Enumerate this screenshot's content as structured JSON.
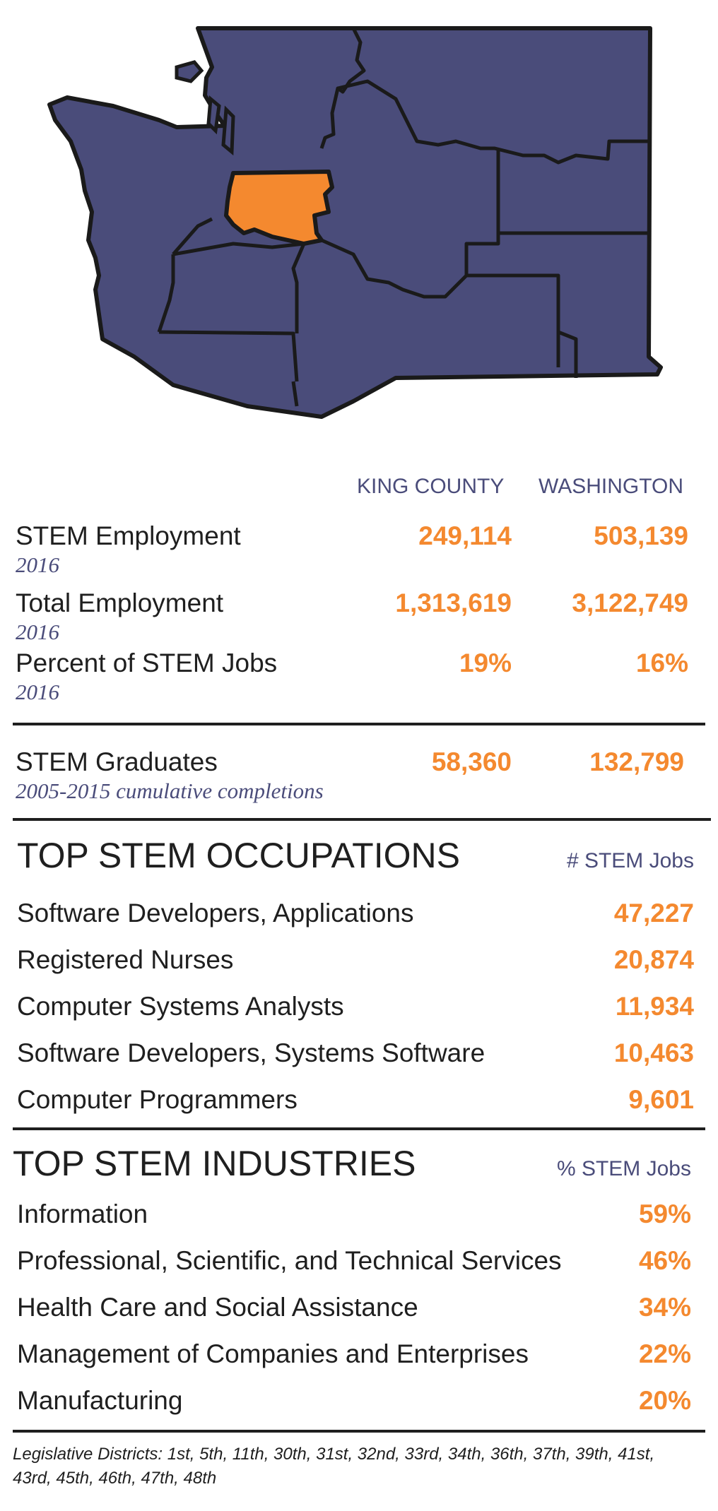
{
  "colors": {
    "region": "#4a4c7a",
    "highlight": "#f4892f",
    "outline": "#1a1a1a"
  },
  "map": {
    "highlighted_county": "King County"
  },
  "columns": {
    "king": "KING COUNTY",
    "wa": "WASHINGTON"
  },
  "stats": [
    {
      "label": "STEM Employment",
      "sub": "2016",
      "king": "249,114",
      "wa": "503,139"
    },
    {
      "label": "Total Employment",
      "sub": "2016",
      "king": "1,313,619",
      "wa": "3,122,749"
    },
    {
      "label": "Percent of STEM Jobs",
      "sub": "2016",
      "king": "19%",
      "wa": "16%"
    }
  ],
  "graduates": {
    "label": "STEM Graduates",
    "sub": "2005-2015 cumulative completions",
    "king": "58,360",
    "wa": "132,799"
  },
  "occupations": {
    "title": "TOP STEM OCCUPATIONS",
    "metric": "# STEM Jobs",
    "items": [
      {
        "label": "Software Developers, Applications",
        "value": "47,227"
      },
      {
        "label": "Registered Nurses",
        "value": "20,874"
      },
      {
        "label": "Computer Systems Analysts",
        "value": "11,934"
      },
      {
        "label": "Software Developers, Systems Software",
        "value": "10,463"
      },
      {
        "label": "Computer Programmers",
        "value": "9,601"
      }
    ]
  },
  "industries": {
    "title": "TOP STEM INDUSTRIES",
    "metric": "% STEM Jobs",
    "items": [
      {
        "label": "Information",
        "value": "59%"
      },
      {
        "label": "Professional, Scientific, and Technical Services",
        "value": "46%"
      },
      {
        "label": "Health Care and Social Assistance",
        "value": "34%"
      },
      {
        "label": "Management of Companies and Enterprises",
        "value": "22%"
      },
      {
        "label": "Manufacturing",
        "value": "20%"
      }
    ]
  },
  "footer": "Legislative Districts: 1st, 5th, 11th, 30th, 31st, 32nd, 33rd, 34th, 36th, 37th, 39th, 41st, 43rd, 45th, 46th, 47th, 48th"
}
